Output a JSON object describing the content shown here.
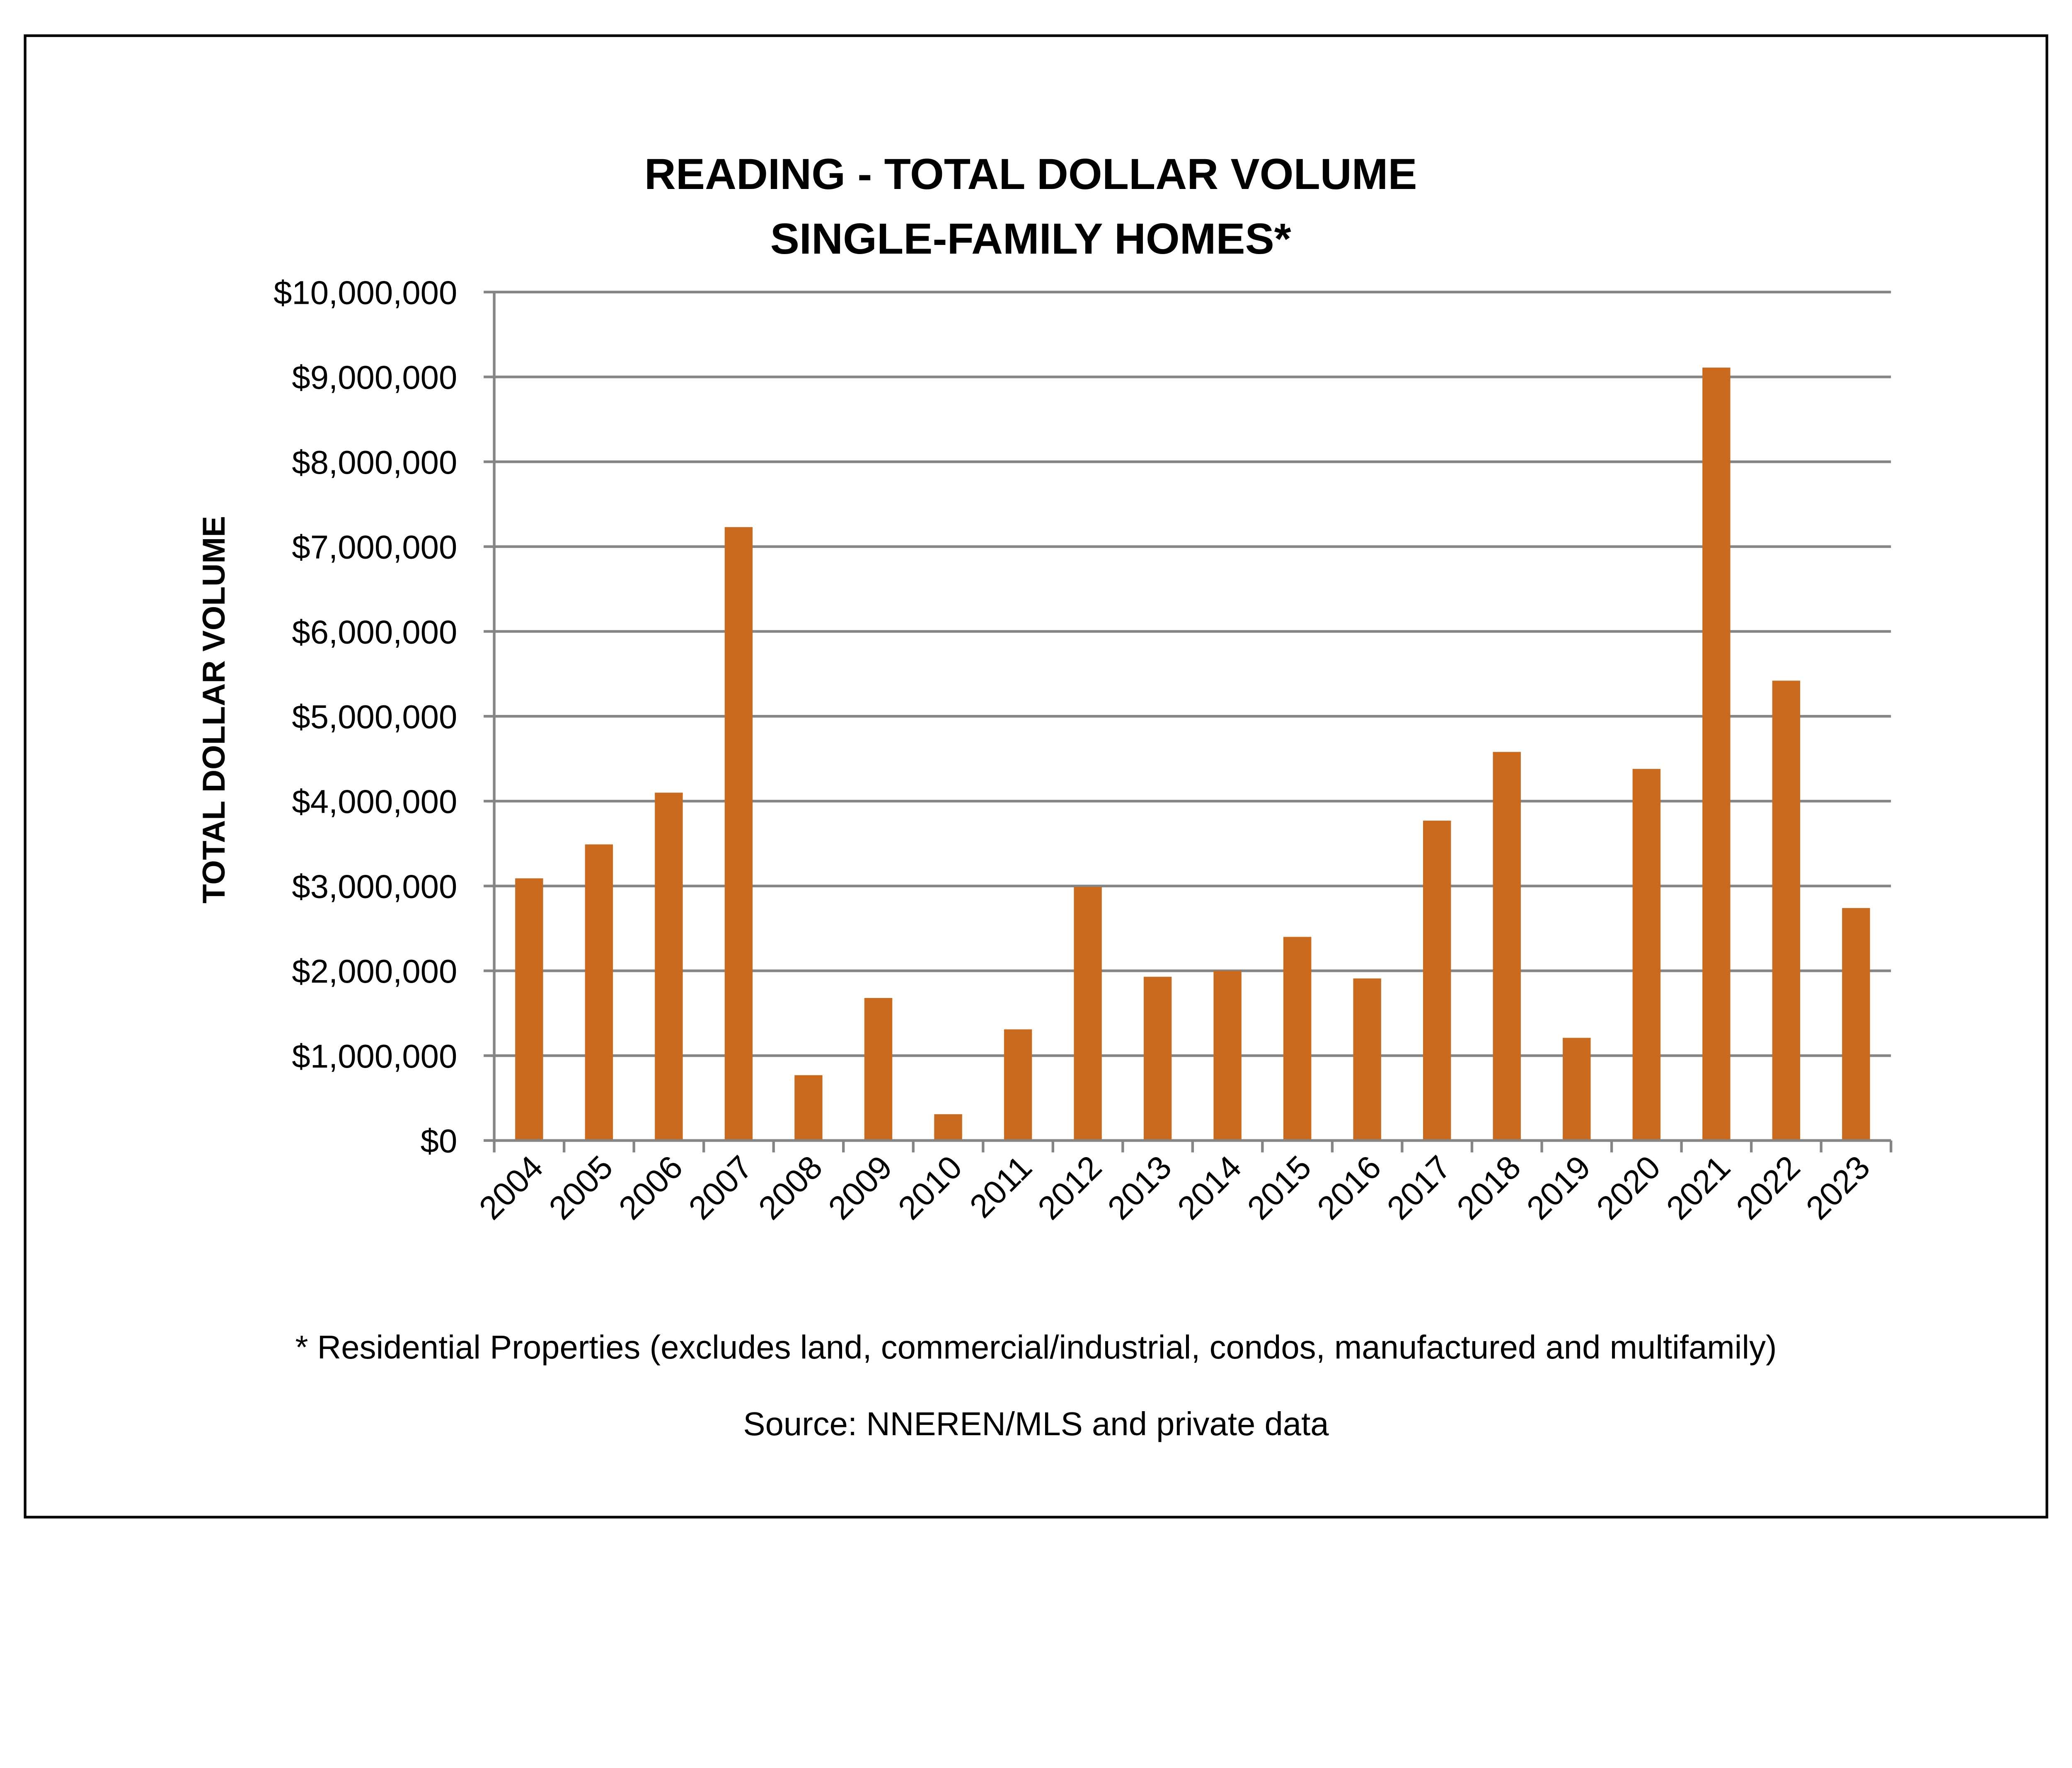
{
  "chart_data": {
    "type": "bar",
    "title": [
      "READING - TOTAL DOLLAR VOLUME",
      "SINGLE-FAMILY HOMES*"
    ],
    "xlabel": "",
    "ylabel": "TOTAL DOLLAR VOLUME",
    "ylim": [
      0,
      10000000
    ],
    "yticks": [
      0,
      1000000,
      2000000,
      3000000,
      4000000,
      5000000,
      6000000,
      7000000,
      8000000,
      9000000,
      10000000
    ],
    "ytick_labels": [
      "$0",
      "$1,000,000",
      "$2,000,000",
      "$3,000,000",
      "$4,000,000",
      "$5,000,000",
      "$6,000,000",
      "$7,000,000",
      "$8,000,000",
      "$9,000,000",
      "$10,000,000"
    ],
    "categories": [
      "2004",
      "2005",
      "2006",
      "2007",
      "2008",
      "2009",
      "2010",
      "2011",
      "2012",
      "2013",
      "2014",
      "2015",
      "2016",
      "2017",
      "2018",
      "2019",
      "2020",
      "2021",
      "2022",
      "2023"
    ],
    "values": [
      3090000,
      3490000,
      4100000,
      7230000,
      770000,
      1680000,
      310000,
      1310000,
      2990000,
      1930000,
      2000000,
      2400000,
      1910000,
      3770000,
      4580000,
      1210000,
      4380000,
      9110000,
      5420000,
      2740000
    ],
    "bar_color": "#C96A1E",
    "grid": true,
    "legend": "none"
  },
  "footnote": "* Residential Properties (excludes land, commercial/industrial, condos, manufactured and multifamily)",
  "source": "Source: NNEREN/MLS and private data"
}
